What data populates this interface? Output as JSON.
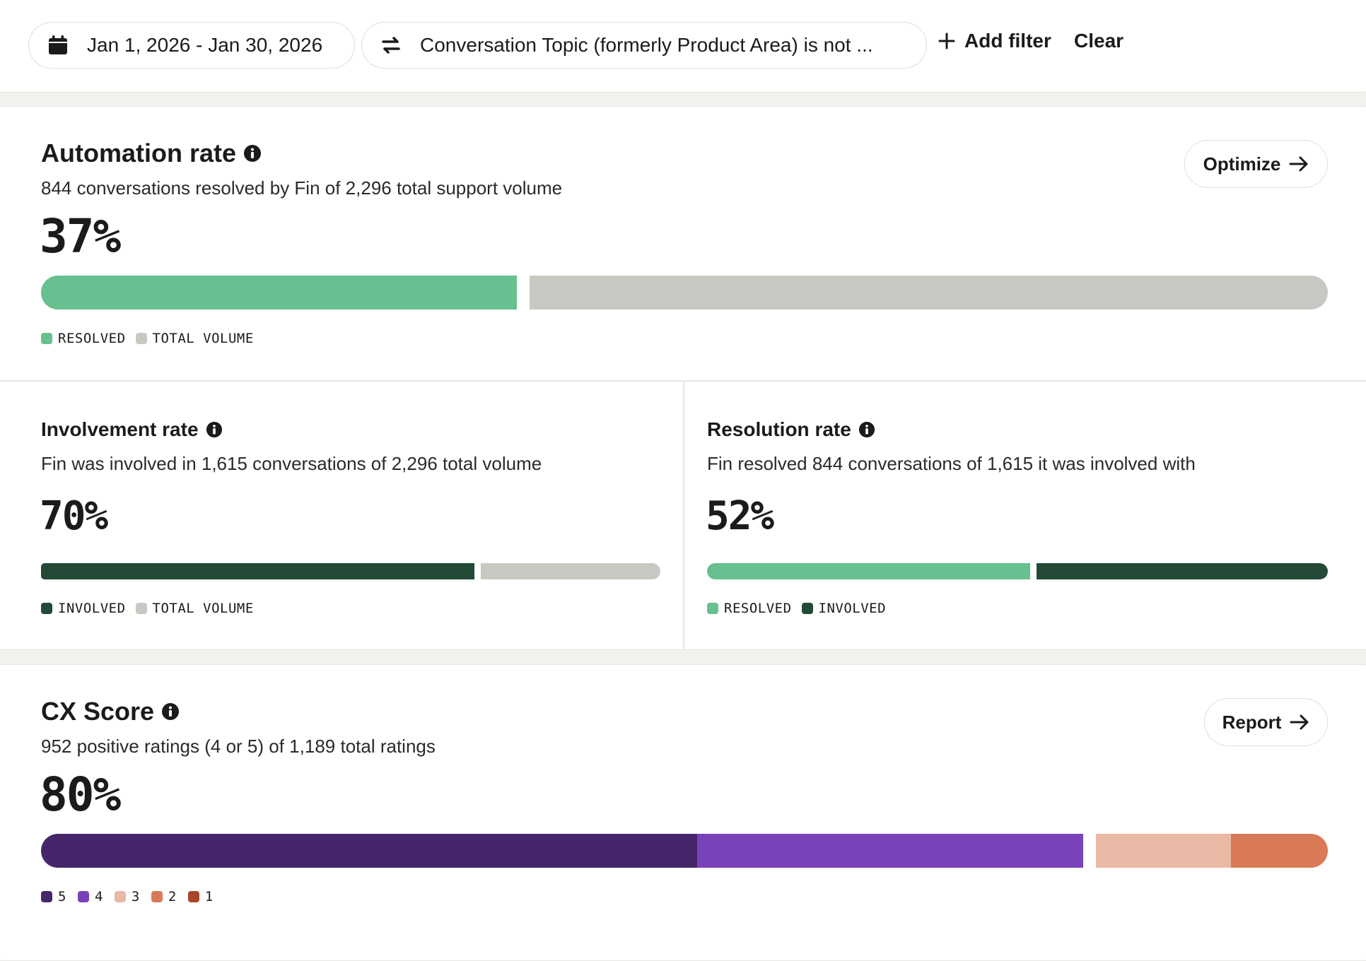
{
  "filters": {
    "date_range": "Jan 1, 2026 - Jan 30, 2026",
    "topic_filter": "Conversation Topic (formerly Product Area) is not ...",
    "add_filter_label": "Add filter",
    "clear_label": "Clear"
  },
  "automation": {
    "title": "Automation rate",
    "subtitle": "844 conversations resolved by Fin of 2,296 total support volume",
    "value": "37%",
    "fraction": 0.37,
    "button_label": "Optimize",
    "legend": [
      {
        "label": "RESOLVED",
        "color": "#66c08f"
      },
      {
        "label": "TOTAL VOLUME",
        "color": "#c8c8c2"
      }
    ]
  },
  "involvement": {
    "title": "Involvement rate",
    "subtitle": "Fin was involved in 1,615 conversations of 2,296 total volume",
    "value": "70%",
    "fraction": 0.7,
    "legend": [
      {
        "label": "INVOLVED",
        "color": "#224a37"
      },
      {
        "label": "TOTAL VOLUME",
        "color": "#c8c8c2"
      }
    ]
  },
  "resolution": {
    "title": "Resolution rate",
    "subtitle": "Fin resolved 844 conversations of 1,615 it was involved with",
    "value": "52%",
    "fraction": 0.52,
    "legend": [
      {
        "label": "RESOLVED",
        "color": "#66c08f"
      },
      {
        "label": "INVOLVED",
        "color": "#224a37"
      }
    ]
  },
  "cx_score": {
    "title": "CX Score",
    "subtitle": "952 positive ratings (4 or 5) of 1,189 total ratings",
    "value": "80%",
    "button_label": "Report",
    "distribution": [
      0.51,
      0.3,
      0.105,
      0.09,
      0.005
    ],
    "legend": [
      {
        "label": "5",
        "color": "#46266b"
      },
      {
        "label": "4",
        "color": "#7a42b9"
      },
      {
        "label": "3",
        "color": "#e9b9a6"
      },
      {
        "label": "2",
        "color": "#d87a56"
      },
      {
        "label": "1",
        "color": "#a9452a"
      }
    ]
  }
}
